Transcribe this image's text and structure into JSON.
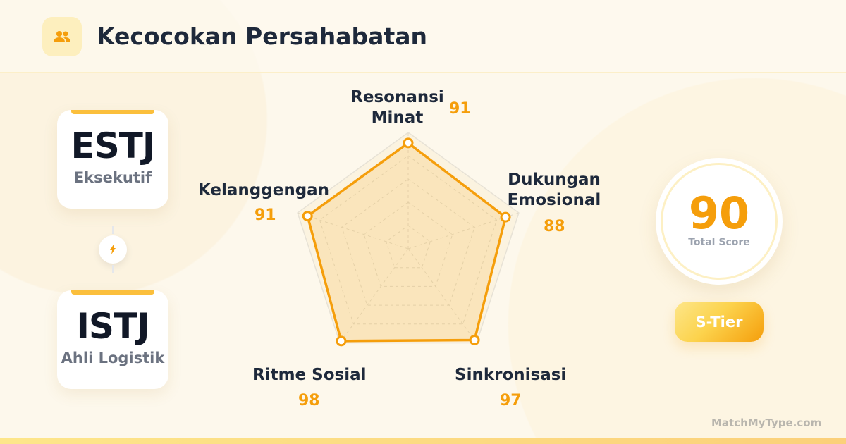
{
  "header": {
    "title": "Kecocokan Persahabatan",
    "icon": "users-icon"
  },
  "types": [
    {
      "code": "ESTJ",
      "name": "Eksekutif"
    },
    {
      "code": "ISTJ",
      "name": "Ahli Logistik"
    }
  ],
  "connector_icon": "lightning-bolt-icon",
  "score": {
    "value": "90",
    "label": "Total Score",
    "tier": "S-Tier"
  },
  "brand": "MatchMyType.com",
  "colors": {
    "accent": "#f59e0b",
    "text": "#1e293b"
  },
  "chart_data": {
    "type": "radar",
    "categories": [
      "Resonansi Minat",
      "Dukungan Emosional",
      "Sinkronisasi",
      "Ritme Sosial",
      "Kelanggengan"
    ],
    "values": [
      91,
      88,
      97,
      98,
      91
    ],
    "value_labels": [
      "91",
      "88",
      "97",
      "98",
      "91"
    ],
    "range": [
      0,
      100
    ],
    "grid": true
  }
}
